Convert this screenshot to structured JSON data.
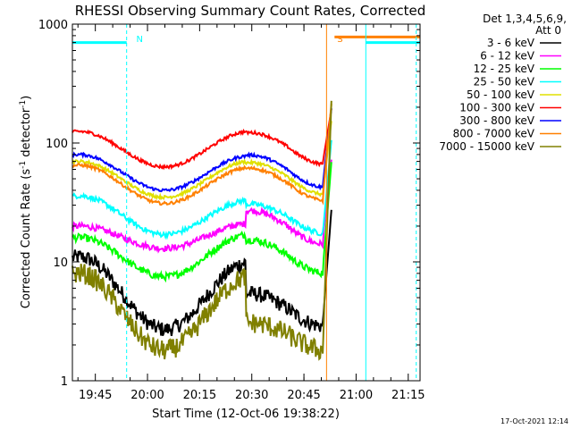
{
  "chart_data": {
    "type": "line",
    "title": "RHESSI Observing Summary Count Rates, Corrected",
    "xlabel": "Start Time (12-Oct-06 19:38:22)",
    "ylabel_main": "Corrected Count Rate (s",
    "ylabel_sup1": "-1",
    "ylabel_mid": " detector",
    "ylabel_sup2": "-1",
    "ylabel_end": ")",
    "yscale": "log",
    "ylim": [
      1,
      1000
    ],
    "xlim_minutes": [
      0,
      100
    ],
    "x_ticks": [
      {
        "label": "19:45",
        "min": 6.6
      },
      {
        "label": "20:00",
        "min": 21.6
      },
      {
        "label": "20:15",
        "min": 36.6
      },
      {
        "label": "20:30",
        "min": 51.6
      },
      {
        "label": "20:45",
        "min": 66.6
      },
      {
        "label": "21:00",
        "min": 81.6
      },
      {
        "label": "21:15",
        "min": 96.6
      }
    ],
    "y_ticks": [
      {
        "label": "1",
        "value": 1
      },
      {
        "label": "10",
        "value": 10
      },
      {
        "label": "100",
        "value": 100
      },
      {
        "label": "1000",
        "value": 1000
      }
    ],
    "legend_header": [
      "Det 1,3,4,5,6,9,",
      "Att 0"
    ],
    "legend_position": "right",
    "series": [
      {
        "name": "3 - 6 keV",
        "color": "#000000",
        "start": 11,
        "trough": 2.7,
        "mid": 10,
        "end": 3,
        "noise": 0.15
      },
      {
        "name": "6 - 12 keV",
        "color": "#ff00ff",
        "start": 20,
        "trough": 13,
        "mid": 21,
        "end": 15,
        "noise": 0.06
      },
      {
        "name": "12 - 25 keV",
        "color": "#00ff00",
        "start": 16,
        "trough": 7.5,
        "mid": 17,
        "end": 8.5,
        "noise": 0.07
      },
      {
        "name": "25 - 50 keV",
        "color": "#00ffff",
        "start": 36,
        "trough": 17,
        "mid": 33,
        "end": 17,
        "noise": 0.05
      },
      {
        "name": "50 - 100 keV",
        "color": "#e0e000",
        "start": 70,
        "trough": 35,
        "mid": 70,
        "end": 38,
        "noise": 0.03
      },
      {
        "name": "100 - 300 keV",
        "color": "#ff0000",
        "start": 125,
        "trough": 63,
        "mid": 125,
        "end": 68,
        "noise": 0.03
      },
      {
        "name": "300 - 800 keV",
        "color": "#0000ff",
        "start": 80,
        "trough": 40,
        "mid": 78,
        "end": 44,
        "noise": 0.03
      },
      {
        "name": "800 - 7000 keV",
        "color": "#ff8000",
        "start": 65,
        "trough": 31,
        "mid": 62,
        "end": 34,
        "noise": 0.03
      },
      {
        "name": "7000 - 15000 keV",
        "color": "#808000",
        "start": 8,
        "trough": 1.8,
        "mid": 7.5,
        "end": 1.7,
        "noise": 0.2
      }
    ],
    "annotations": [
      {
        "text": "N",
        "color": "#00ffff",
        "x_min": 17.6
      },
      {
        "text": "S",
        "color": "#ff8000",
        "x_min": 75.4
      }
    ],
    "night_bars": [
      {
        "x0": 0,
        "x1": 15.6,
        "y": 700,
        "color": "#00ffff"
      },
      {
        "x0": 84.4,
        "x1": 100,
        "y": 700,
        "color": "#00ffff"
      },
      {
        "x0": 75.4,
        "x1": 100,
        "y": 780,
        "color": "#ff8000"
      }
    ],
    "vlines": [
      {
        "x": 15.6,
        "color": "#00ffff",
        "dash": true
      },
      {
        "x": 84.4,
        "color": "#00ffff",
        "dash": false
      },
      {
        "x": 98.9,
        "color": "#00ffff",
        "dash": true
      },
      {
        "x": 73.1,
        "color": "#ff8000",
        "dash": false
      }
    ]
  },
  "footer_timestamp": "17-Oct-2021 12:14"
}
